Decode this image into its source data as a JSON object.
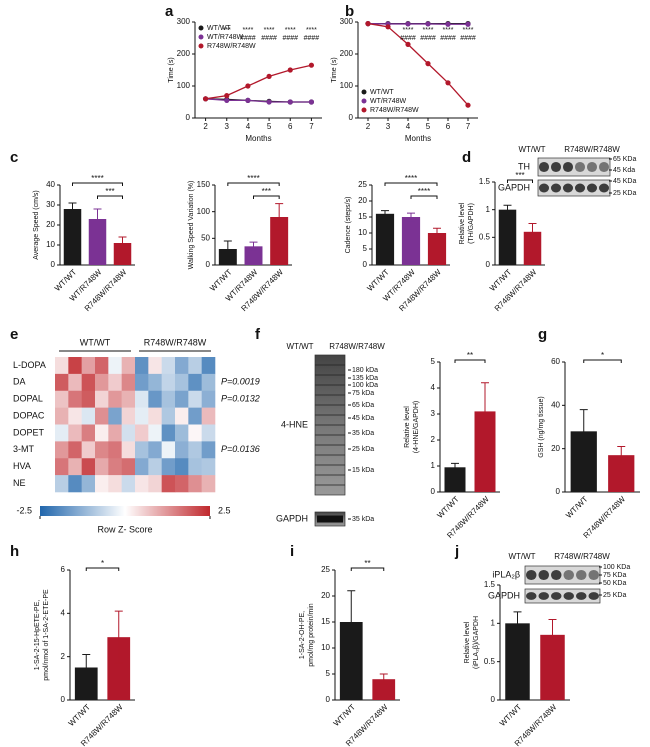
{
  "chart_data": [
    {
      "panel": "a",
      "type": "line",
      "xlabel": "Months",
      "ylabel": [
        "Time (s)"
      ],
      "x": [
        2,
        3,
        4,
        5,
        6,
        7
      ],
      "xlim": [
        1.5,
        7.5
      ],
      "xticks": [
        2,
        3,
        4,
        5,
        6,
        7
      ],
      "ylim": [
        0,
        300
      ],
      "yticks": [
        0,
        100,
        200,
        300
      ],
      "legend": "upper left",
      "series": [
        {
          "name": "WT/WT",
          "color": "#1a1a1a",
          "values": [
            60,
            58,
            55,
            52,
            50,
            50
          ]
        },
        {
          "name": "WT/R748W",
          "color": "#7b3294",
          "values": [
            60,
            55,
            55,
            50,
            50,
            50
          ]
        },
        {
          "name": "R748W/R748W",
          "color": "#b2182b",
          "values": [
            60,
            70,
            100,
            130,
            150,
            165
          ]
        }
      ],
      "annotations": [
        [],
        [
          "***"
        ],
        [
          "****",
          "####"
        ],
        [
          "****",
          "####"
        ],
        [
          "****",
          "####"
        ],
        [
          "****",
          "####"
        ]
      ]
    },
    {
      "panel": "b",
      "type": "line",
      "xlabel": "Months",
      "ylabel": [
        "Time (s)"
      ],
      "x": [
        2,
        3,
        4,
        5,
        6,
        7
      ],
      "xlim": [
        1.5,
        7.5
      ],
      "xticks": [
        2,
        3,
        4,
        5,
        6,
        7
      ],
      "ylim": [
        0,
        300
      ],
      "yticks": [
        0,
        100,
        200,
        300
      ],
      "legend": "lower left",
      "series": [
        {
          "name": "WT/WT",
          "color": "#1a1a1a",
          "values": [
            295,
            295,
            295,
            295,
            295,
            295
          ]
        },
        {
          "name": "WT/R748W",
          "color": "#7b3294",
          "values": [
            295,
            294,
            294,
            294,
            293,
            293
          ]
        },
        {
          "name": "R748W/R748W",
          "color": "#b2182b",
          "values": [
            295,
            285,
            230,
            170,
            110,
            40
          ]
        }
      ],
      "annotations": [
        [],
        [],
        [
          "****",
          "####"
        ],
        [
          "****",
          "####"
        ],
        [
          "****",
          "####"
        ],
        [
          "****",
          "####"
        ]
      ]
    },
    {
      "panel": "c",
      "type": "bar",
      "ylabel": [
        "Average Speed (cm/s)"
      ],
      "categories": [
        "WT/WT",
        "WT/R748W",
        "R748W/R748W"
      ],
      "values": [
        28,
        23,
        11
      ],
      "errors": [
        3,
        5,
        3
      ],
      "colors": [
        "#1a1a1a",
        "#7b3294",
        "#b2182b"
      ],
      "ylim": [
        0,
        40
      ],
      "yticks": [
        0,
        10,
        20,
        30,
        40
      ],
      "annotations": [
        "****",
        "***"
      ]
    },
    {
      "type": "bar",
      "ylabel": [
        "Walking Speed Variation (%)"
      ],
      "categories": [
        "WT/WT",
        "WT/R748W",
        "R748W/R748W"
      ],
      "values": [
        30,
        35,
        90
      ],
      "errors": [
        15,
        8,
        25
      ],
      "colors": [
        "#1a1a1a",
        "#7b3294",
        "#b2182b"
      ],
      "ylim": [
        0,
        150
      ],
      "yticks": [
        0,
        50,
        100,
        150
      ],
      "annotations": [
        "****",
        "***"
      ]
    },
    {
      "type": "bar",
      "ylabel": [
        "Cadence (steps/s)"
      ],
      "categories": [
        "WT/WT",
        "WT/R748W",
        "R748W/R748W"
      ],
      "values": [
        16,
        15,
        10
      ],
      "errors": [
        1,
        1.2,
        1.5
      ],
      "colors": [
        "#1a1a1a",
        "#7b3294",
        "#b2182b"
      ],
      "ylim": [
        0,
        25
      ],
      "yticks": [
        0,
        5,
        10,
        15,
        20,
        25
      ],
      "annotations": [
        "****",
        "****"
      ]
    },
    {
      "panel": "d",
      "type": "bar",
      "ylabel": [
        "Relative level",
        "(TH/GAPDH)"
      ],
      "categories": [
        "WT/WT",
        "R748W/R748W"
      ],
      "values": [
        1.0,
        0.6
      ],
      "errors": [
        0.08,
        0.15
      ],
      "colors": [
        "#1a1a1a",
        "#b2182b"
      ],
      "ylim": [
        0,
        1.5
      ],
      "yticks": [
        0,
        0.5,
        1,
        1.5
      ],
      "annotations": [
        "***"
      ],
      "blot": {
        "header": [
          "WT/WT",
          "R748W/R748W"
        ],
        "rows": [
          "TH",
          "GAPDH"
        ],
        "markers": [
          "65 KDa",
          "45 Kda",
          "45 KDa",
          "25 KDa"
        ]
      }
    },
    {
      "panel": "e",
      "type": "heatmap",
      "groups": [
        "WT/WT",
        "R748W/R748W"
      ],
      "row_labels": [
        "L-DOPA",
        "DA",
        "DOPAL",
        "DOPAC",
        "DOPET",
        "3-MT",
        "HVA",
        "NE"
      ],
      "p_values": [
        null,
        "P=0.0019",
        "P=0.0132",
        null,
        null,
        "P=0.0136",
        null,
        null
      ],
      "values": [
        [
          0.4,
          2.2,
          1.1,
          1.8,
          -0.2,
          0.9,
          -1.8,
          0.3,
          -0.6,
          -1.4,
          -0.8,
          -1.9
        ],
        [
          1.9,
          0.8,
          2.0,
          1.2,
          0.6,
          1.4,
          -1.6,
          -1.2,
          -0.7,
          -1.0,
          -1.8,
          -1.1
        ],
        [
          0.7,
          1.6,
          1.9,
          0.5,
          1.2,
          0.9,
          -0.4,
          -1.7,
          -1.0,
          -1.5,
          -0.6,
          -1.3
        ],
        [
          0.9,
          0.3,
          -0.4,
          1.3,
          -1.5,
          0.5,
          -0.3,
          0.4,
          -0.9,
          0.2,
          -1.6,
          0.8
        ],
        [
          -0.3,
          0.8,
          1.5,
          0.2,
          1.0,
          -0.5,
          0.6,
          -0.2,
          -1.8,
          -1.1,
          0.1,
          -0.6
        ],
        [
          1.2,
          1.8,
          0.6,
          1.4,
          1.6,
          0.4,
          -1.0,
          -1.4,
          -0.2,
          -1.3,
          -0.9,
          -1.6
        ],
        [
          1.6,
          0.9,
          2.1,
          1.0,
          1.5,
          1.7,
          -1.4,
          -0.8,
          -1.6,
          -1.9,
          -1.0,
          -0.9
        ],
        [
          -0.8,
          -1.9,
          -1.2,
          0.2,
          0.4,
          -0.6,
          0.3,
          0.5,
          2.0,
          1.8,
          1.3,
          0.9
        ]
      ],
      "zlim": [
        -2.5,
        2.5
      ],
      "zticks": [
        -2.5,
        2.5
      ],
      "zlabel": "Row Z- Score"
    },
    {
      "panel": "f",
      "type": "bar",
      "ylabel": [
        "Relative level",
        "(4-HNE/GAPDH)"
      ],
      "categories": [
        "WT/WT",
        "R748W/R748W"
      ],
      "values": [
        0.95,
        3.1
      ],
      "errors": [
        0.15,
        1.1
      ],
      "colors": [
        "#1a1a1a",
        "#b2182b"
      ],
      "ylim": [
        0,
        5
      ],
      "yticks": [
        0,
        1,
        2,
        3,
        4,
        5
      ],
      "annotations": [
        "**"
      ],
      "blot": {
        "header": [
          "WT/WT",
          "R748W/R748W"
        ],
        "rows": [
          "4-HNE",
          "GAPDH"
        ],
        "markers": [
          "180 kDa",
          "135 kDa",
          "100 kDa",
          "75 kDa",
          "65 kDa",
          "45 kDa",
          "35 kDa",
          "25 kDa",
          "15 kDa",
          "35 kDa"
        ]
      }
    },
    {
      "panel": "g",
      "type": "bar",
      "ylabel": [
        "GSH (ng/mg tissue)"
      ],
      "categories": [
        "WT/WT",
        "R748W/R748W"
      ],
      "values": [
        28,
        17
      ],
      "errors": [
        10,
        4
      ],
      "colors": [
        "#1a1a1a",
        "#b2182b"
      ],
      "ylim": [
        0,
        60
      ],
      "yticks": [
        0,
        20,
        40,
        60
      ],
      "annotations": [
        "*"
      ]
    },
    {
      "panel": "h",
      "type": "bar",
      "ylabel": [
        "1-SA-2-15-HpETE-PE,",
        "pmol/nmol of 1-SA-2-ETE-PE"
      ],
      "categories": [
        "WT/WT",
        "R748W/R748W"
      ],
      "values": [
        1.5,
        2.9
      ],
      "errors": [
        0.6,
        1.2
      ],
      "colors": [
        "#1a1a1a",
        "#b2182b"
      ],
      "ylim": [
        0,
        6
      ],
      "yticks": [
        0,
        2,
        4,
        6
      ],
      "annotations": [
        "*"
      ]
    },
    {
      "panel": "i",
      "type": "bar",
      "ylabel": [
        "1-SA-2-OH-PE,",
        "pmol/mg protein/min"
      ],
      "categories": [
        "WT/WT",
        "R748W/R748W"
      ],
      "values": [
        15,
        4
      ],
      "errors": [
        6,
        1
      ],
      "colors": [
        "#1a1a1a",
        "#b2182b"
      ],
      "ylim": [
        0,
        25
      ],
      "yticks": [
        0,
        5,
        10,
        15,
        20,
        25
      ],
      "annotations": [
        "**"
      ]
    },
    {
      "panel": "j",
      "type": "bar",
      "ylabel": [
        "Relative level",
        "(iPLA₂β)/GAPDH"
      ],
      "categories": [
        "WT/WT",
        "R748W/R748W"
      ],
      "values": [
        1.0,
        0.85
      ],
      "errors": [
        0.15,
        0.2
      ],
      "colors": [
        "#1a1a1a",
        "#b2182b"
      ],
      "ylim": [
        0,
        1.5
      ],
      "yticks": [
        0,
        0.5,
        1,
        1.5
      ],
      "blot": {
        "header": [
          "WT/WT",
          "R748W/R748W"
        ],
        "rows": [
          "iPLA₂β",
          "GAPDH"
        ],
        "markers": [
          "100 KDa",
          "75 KDa",
          "50 KDa",
          "25 KDa"
        ]
      }
    }
  ]
}
